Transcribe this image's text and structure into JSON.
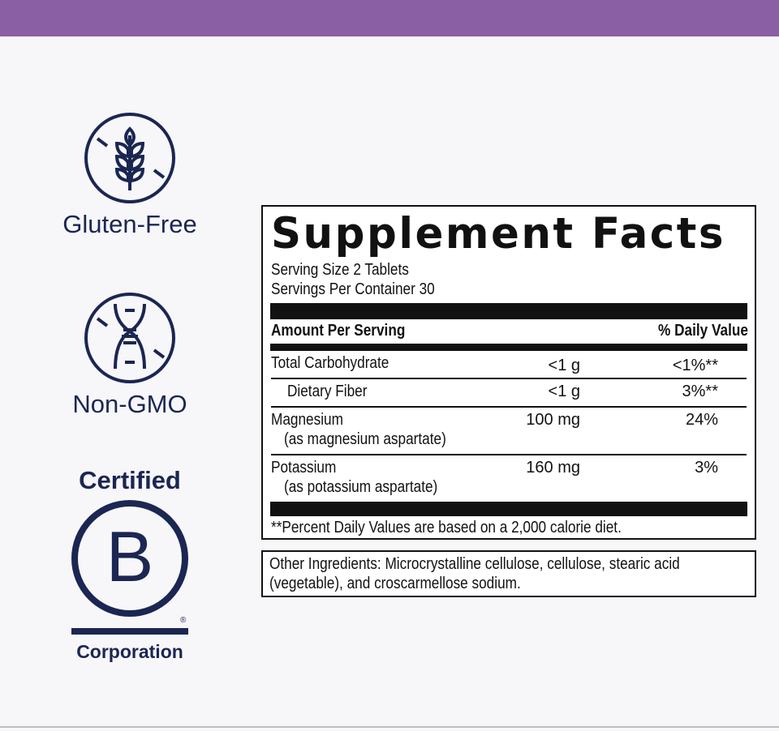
{
  "colors": {
    "accent": "#8a5fa4",
    "navy": "#1b2652"
  },
  "badges": [
    {
      "icon": "no-wheat-icon",
      "label": "Gluten-Free"
    },
    {
      "icon": "no-dna-icon",
      "label": "Non-GMO"
    }
  ],
  "bcorp": {
    "top": "Certified",
    "letter": "B",
    "reg": "®",
    "bottom": "Corporation"
  },
  "facts": {
    "title": "Supplement Facts",
    "serving_size": "Serving Size 2 Tablets",
    "servings_per_container": "Servings Per Container 30",
    "header_amount": "Amount Per Serving",
    "header_dv": "% Daily Value",
    "rows": [
      {
        "name": "Total Carbohydrate",
        "sub": "",
        "amount": "<1 g",
        "dv": "<1%**"
      },
      {
        "name": "Dietary Fiber",
        "sub": "",
        "amount": "<1 g",
        "dv": "3%**"
      },
      {
        "name": "Magnesium",
        "sub": "(as magnesium aspartate)",
        "amount": "100 mg",
        "dv": "24%"
      },
      {
        "name": "Potassium",
        "sub": "(as potassium aspartate)",
        "amount": "160 mg",
        "dv": "3%"
      }
    ],
    "footnote": "**Percent Daily Values are based on a 2,000 calorie diet."
  },
  "other_ingredients": "Other Ingredients: Microcrystalline cellulose, cellulose, stearic acid (vegetable), and croscarmellose sodium."
}
